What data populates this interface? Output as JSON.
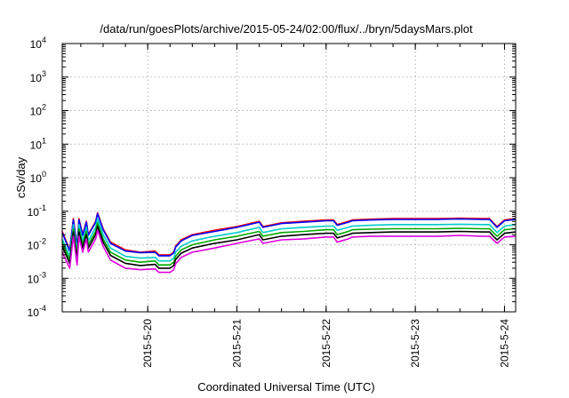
{
  "chart_data": {
    "type": "line",
    "title": "/data/run/goesPlots/archive/2015-05-24/02:00/flux/../bryn/5daysMars.plot",
    "xlabel": "Coordinated Universal Time (UTC)",
    "ylabel": "cSv/day",
    "yscale": "log",
    "ylim": [
      0.0001,
      10000
    ],
    "y_ticks": [
      {
        "value": 0.0001,
        "base": "10",
        "exp": "-4"
      },
      {
        "value": 0.001,
        "base": "10",
        "exp": "-3"
      },
      {
        "value": 0.01,
        "base": "10",
        "exp": "-2"
      },
      {
        "value": 0.1,
        "base": "10",
        "exp": "-1"
      },
      {
        "value": 1,
        "base": "10",
        "exp": "0"
      },
      {
        "value": 10,
        "base": "10",
        "exp": "1"
      },
      {
        "value": 100,
        "base": "10",
        "exp": "2"
      },
      {
        "value": 1000,
        "base": "10",
        "exp": "3"
      },
      {
        "value": 10000,
        "base": "10",
        "exp": "4"
      }
    ],
    "xlim": [
      "2015-05-19 01:00",
      "2015-05-24 03:00"
    ],
    "x_ticks": [
      {
        "value": "2015-05-20 00:00",
        "label": "2015-5-20"
      },
      {
        "value": "2015-05-21 00:00",
        "label": "2015-5-21"
      },
      {
        "value": "2015-05-22 00:00",
        "label": "2015-5-22"
      },
      {
        "value": "2015-05-23 00:00",
        "label": "2015-5-23"
      },
      {
        "value": "2015-05-24 00:00",
        "label": "2015-5-24"
      }
    ],
    "grid": true,
    "legend": "none",
    "x": [
      "2015-05-19 01:00",
      "2015-05-19 03:00",
      "2015-05-19 04:00",
      "2015-05-19 05:00",
      "2015-05-19 05:30",
      "2015-05-19 06:30",
      "2015-05-19 07:30",
      "2015-05-19 08:00",
      "2015-05-19 10:00",
      "2015-05-19 10:30",
      "2015-05-19 12:00",
      "2015-05-19 14:00",
      "2015-05-19 18:00",
      "2015-05-19 22:00",
      "2015-05-20 02:00",
      "2015-05-20 03:00",
      "2015-05-20 06:00",
      "2015-05-20 07:00",
      "2015-05-20 07:30",
      "2015-05-20 09:00",
      "2015-05-20 12:00",
      "2015-05-20 18:00",
      "2015-05-21 00:00",
      "2015-05-21 06:00",
      "2015-05-21 07:00",
      "2015-05-21 12:00",
      "2015-05-21 18:00",
      "2015-05-22 00:00",
      "2015-05-22 02:00",
      "2015-05-22 03:00",
      "2015-05-22 06:00",
      "2015-05-22 07:00",
      "2015-05-22 12:00",
      "2015-05-22 18:00",
      "2015-05-23 00:00",
      "2015-05-23 06:00",
      "2015-05-23 12:00",
      "2015-05-23 18:00",
      "2015-05-23 20:00",
      "2015-05-23 21:00",
      "2015-05-23 22:00",
      "2015-05-24 00:00",
      "2015-05-24 03:00"
    ],
    "series": [
      {
        "color": "#ff0000",
        "values": [
          0.025,
          0.007,
          0.06,
          0.009,
          0.06,
          0.02,
          0.05,
          0.02,
          0.05,
          0.09,
          0.03,
          0.012,
          0.007,
          0.006,
          0.0065,
          0.005,
          0.005,
          0.006,
          0.009,
          0.014,
          0.02,
          0.027,
          0.035,
          0.05,
          0.035,
          0.045,
          0.05,
          0.055,
          0.055,
          0.04,
          0.05,
          0.055,
          0.058,
          0.06,
          0.06,
          0.06,
          0.062,
          0.06,
          0.06,
          0.045,
          0.035,
          0.055,
          0.06
        ]
      },
      {
        "color": "#0000ff",
        "values": [
          0.023,
          0.0065,
          0.055,
          0.0085,
          0.055,
          0.019,
          0.047,
          0.019,
          0.047,
          0.085,
          0.028,
          0.011,
          0.0065,
          0.0058,
          0.006,
          0.0047,
          0.0047,
          0.0057,
          0.0085,
          0.013,
          0.019,
          0.025,
          0.033,
          0.047,
          0.033,
          0.043,
          0.047,
          0.052,
          0.052,
          0.038,
          0.047,
          0.052,
          0.055,
          0.057,
          0.057,
          0.057,
          0.059,
          0.057,
          0.057,
          0.043,
          0.033,
          0.052,
          0.057
        ]
      },
      {
        "color": "#00cccc",
        "values": [
          0.015,
          0.0045,
          0.04,
          0.006,
          0.04,
          0.013,
          0.033,
          0.013,
          0.033,
          0.06,
          0.02,
          0.008,
          0.0045,
          0.004,
          0.0042,
          0.0033,
          0.0033,
          0.004,
          0.006,
          0.009,
          0.013,
          0.018,
          0.023,
          0.033,
          0.023,
          0.03,
          0.033,
          0.036,
          0.036,
          0.027,
          0.033,
          0.036,
          0.038,
          0.04,
          0.04,
          0.04,
          0.041,
          0.04,
          0.04,
          0.03,
          0.023,
          0.036,
          0.04
        ]
      },
      {
        "color": "#00aa00",
        "values": [
          0.012,
          0.0035,
          0.03,
          0.0045,
          0.03,
          0.01,
          0.025,
          0.01,
          0.025,
          0.045,
          0.015,
          0.006,
          0.0035,
          0.003,
          0.0033,
          0.0025,
          0.0025,
          0.003,
          0.0045,
          0.007,
          0.01,
          0.014,
          0.018,
          0.025,
          0.018,
          0.023,
          0.025,
          0.028,
          0.028,
          0.02,
          0.025,
          0.028,
          0.029,
          0.03,
          0.03,
          0.03,
          0.031,
          0.03,
          0.03,
          0.023,
          0.018,
          0.028,
          0.03
        ]
      },
      {
        "color": "#000000",
        "values": [
          0.009,
          0.0028,
          0.024,
          0.0036,
          0.024,
          0.008,
          0.02,
          0.008,
          0.02,
          0.036,
          0.012,
          0.0048,
          0.0028,
          0.0024,
          0.0026,
          0.002,
          0.002,
          0.0024,
          0.0036,
          0.0056,
          0.008,
          0.011,
          0.014,
          0.02,
          0.014,
          0.018,
          0.02,
          0.022,
          0.022,
          0.016,
          0.02,
          0.022,
          0.023,
          0.024,
          0.024,
          0.024,
          0.025,
          0.024,
          0.024,
          0.018,
          0.014,
          0.022,
          0.024
        ]
      },
      {
        "color": "#dd00dd",
        "values": [
          0.006,
          0.002,
          0.018,
          0.0025,
          0.018,
          0.006,
          0.015,
          0.006,
          0.015,
          0.027,
          0.009,
          0.0035,
          0.002,
          0.0018,
          0.0019,
          0.0015,
          0.0015,
          0.0018,
          0.0027,
          0.0042,
          0.006,
          0.008,
          0.011,
          0.015,
          0.011,
          0.014,
          0.015,
          0.017,
          0.017,
          0.012,
          0.015,
          0.017,
          0.018,
          0.018,
          0.018,
          0.018,
          0.019,
          0.018,
          0.018,
          0.014,
          0.011,
          0.017,
          0.018
        ]
      }
    ]
  }
}
